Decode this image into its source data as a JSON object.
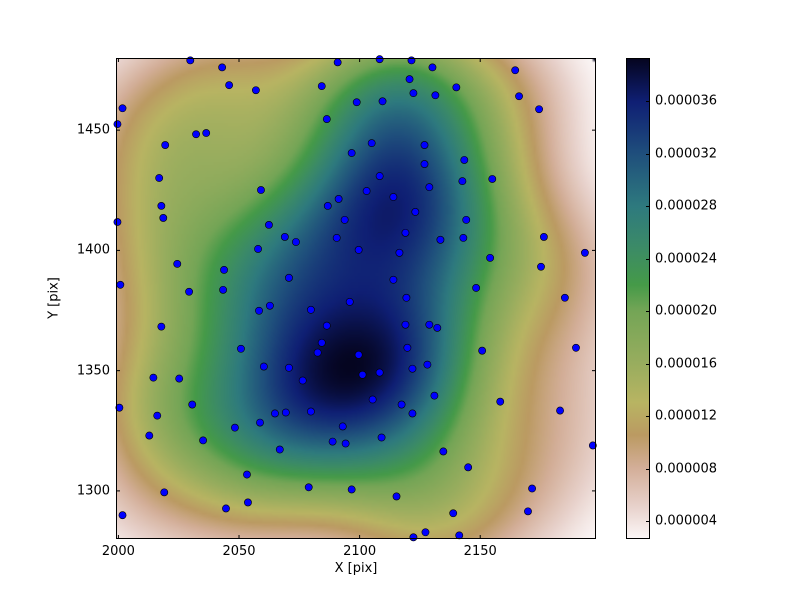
{
  "chart_data": {
    "type": "scatter",
    "background": "kde-heatmap",
    "xlabel": "X [pix]",
    "ylabel": "Y [pix]",
    "xlim": [
      1999,
      2198
    ],
    "ylim": [
      1280,
      1480
    ],
    "xticks": [
      2000,
      2050,
      2100,
      2150
    ],
    "yticks": [
      1300,
      1350,
      1400,
      1450
    ],
    "grid": false,
    "marker_color": "#0000ff",
    "marker_edge": "#000000",
    "points": [
      [
        2029.8,
        1479.0
      ],
      [
        2043.0,
        1476.1
      ],
      [
        2045.9,
        1468.7
      ],
      [
        2057.0,
        1466.6
      ],
      [
        2084.3,
        1468.3
      ],
      [
        2090.9,
        1478.2
      ],
      [
        2098.8,
        1461.6
      ],
      [
        2001.7,
        1459.1
      ],
      [
        1999.6,
        1452.5
      ],
      [
        2032.2,
        1448.3
      ],
      [
        2036.4,
        1448.8
      ],
      [
        2019.4,
        1443.8
      ],
      [
        2086.4,
        1454.6
      ],
      [
        2096.7,
        1440.5
      ],
      [
        2016.9,
        1430.1
      ],
      [
        2059.1,
        1425.1
      ],
      [
        2017.8,
        1418.5
      ],
      [
        2018.6,
        1413.5
      ],
      [
        2091.3,
        1421.4
      ],
      [
        2086.8,
        1418.5
      ],
      [
        1999.6,
        1411.8
      ],
      [
        2062.4,
        1410.6
      ],
      [
        2093.8,
        1412.7
      ],
      [
        2069.0,
        1405.6
      ],
      [
        2073.6,
        1403.5
      ],
      [
        2090.5,
        1405.2
      ],
      [
        2057.9,
        1400.6
      ],
      [
        2099.6,
        1400.2
      ],
      [
        2024.4,
        1394.4
      ],
      [
        2043.8,
        1391.9
      ],
      [
        2070.7,
        1388.6
      ],
      [
        2000.8,
        1385.7
      ],
      [
        2029.3,
        1382.8
      ],
      [
        2043.4,
        1383.6
      ],
      [
        2108.3,
        1479.5
      ],
      [
        2121.5,
        1479.0
      ],
      [
        2130.2,
        1476.1
      ],
      [
        2120.7,
        1471.2
      ],
      [
        2140.1,
        1467.8
      ],
      [
        2164.5,
        1474.9
      ],
      [
        2122.3,
        1465.4
      ],
      [
        2131.4,
        1464.5
      ],
      [
        2166.1,
        1464.1
      ],
      [
        2109.5,
        1462.0
      ],
      [
        2174.4,
        1458.7
      ],
      [
        2105.0,
        1444.6
      ],
      [
        2126.9,
        1443.8
      ],
      [
        2126.9,
        1435.9
      ],
      [
        2143.4,
        1437.6
      ],
      [
        2108.3,
        1430.9
      ],
      [
        2142.6,
        1428.8
      ],
      [
        2155.0,
        1429.7
      ],
      [
        2102.9,
        1424.7
      ],
      [
        2114.0,
        1422.2
      ],
      [
        2128.9,
        1426.3
      ],
      [
        2123.1,
        1416.0
      ],
      [
        2144.2,
        1412.7
      ],
      [
        2119.0,
        1407.3
      ],
      [
        2133.5,
        1404.4
      ],
      [
        2143.0,
        1405.2
      ],
      [
        2176.4,
        1405.6
      ],
      [
        2116.5,
        1399.0
      ],
      [
        2193.4,
        1399.0
      ],
      [
        2154.1,
        1396.9
      ],
      [
        2175.2,
        1393.2
      ],
      [
        2114.0,
        1387.8
      ],
      [
        2148.3,
        1384.4
      ],
      [
        2119.4,
        1380.3
      ],
      [
        2185.1,
        1380.3
      ],
      [
        2058.3,
        1374.9
      ],
      [
        2062.8,
        1377.0
      ],
      [
        2079.8,
        1375.3
      ],
      [
        2095.9,
        1378.6
      ],
      [
        2017.8,
        1368.3
      ],
      [
        2086.4,
        1368.7
      ],
      [
        2084.3,
        1361.6
      ],
      [
        2082.6,
        1357.5
      ],
      [
        2099.6,
        1356.6
      ],
      [
        2050.8,
        1359.1
      ],
      [
        2060.3,
        1351.7
      ],
      [
        2070.7,
        1351.2
      ],
      [
        2014.5,
        1347.1
      ],
      [
        2025.2,
        1346.7
      ],
      [
        2076.4,
        1345.9
      ],
      [
        2000.4,
        1334.6
      ],
      [
        2030.6,
        1335.9
      ],
      [
        2016.1,
        1331.3
      ],
      [
        2064.9,
        1332.2
      ],
      [
        2069.4,
        1332.6
      ],
      [
        2079.8,
        1333.0
      ],
      [
        2058.7,
        1328.4
      ],
      [
        2048.3,
        1326.3
      ],
      [
        2093.0,
        1326.8
      ],
      [
        2012.8,
        1323.0
      ],
      [
        2035.1,
        1321.0
      ],
      [
        2088.8,
        1320.5
      ],
      [
        2094.2,
        1319.7
      ],
      [
        2066.9,
        1317.2
      ],
      [
        2053.3,
        1306.8
      ],
      [
        2078.9,
        1301.5
      ],
      [
        2096.7,
        1300.6
      ],
      [
        2019.0,
        1299.4
      ],
      [
        2053.7,
        1295.2
      ],
      [
        2044.6,
        1292.7
      ],
      [
        2001.7,
        1289.9
      ],
      [
        2119.0,
        1369.1
      ],
      [
        2128.9,
        1369.1
      ],
      [
        2132.2,
        1367.8
      ],
      [
        2119.8,
        1359.5
      ],
      [
        2150.8,
        1358.3
      ],
      [
        2189.7,
        1359.5
      ],
      [
        2101.2,
        1348.3
      ],
      [
        2108.3,
        1349.2
      ],
      [
        2121.9,
        1350.8
      ],
      [
        2128.1,
        1352.5
      ],
      [
        2105.4,
        1338.0
      ],
      [
        2117.4,
        1335.9
      ],
      [
        2121.9,
        1332.2
      ],
      [
        2131.0,
        1339.6
      ],
      [
        2158.3,
        1337.1
      ],
      [
        2183.1,
        1333.4
      ],
      [
        2109.1,
        1322.2
      ],
      [
        2134.7,
        1316.4
      ],
      [
        2196.7,
        1318.9
      ],
      [
        2145.0,
        1309.8
      ],
      [
        2115.3,
        1297.7
      ],
      [
        2171.5,
        1301.0
      ],
      [
        2138.8,
        1290.7
      ],
      [
        2169.8,
        1291.5
      ],
      [
        2122.3,
        1280.7
      ],
      [
        2127.3,
        1282.8
      ],
      [
        2141.3,
        1281.5
      ]
    ],
    "colorbar": {
      "range": [
        2.63e-06,
        3.93e-05
      ],
      "ticks": [
        "0.000004",
        "0.000008",
        "0.000012",
        "0.000016",
        "0.000020",
        "0.000024",
        "0.000028",
        "0.000032",
        "0.000036"
      ],
      "colormap": [
        [
          2.63e-06,
          "#fbf6f6"
        ],
        [
          5e-06,
          "#e8d2cc"
        ],
        [
          8e-06,
          "#d3ae98"
        ],
        [
          1.05e-05,
          "#bb9a62"
        ],
        [
          1.3e-05,
          "#b8b462"
        ],
        [
          1.6e-05,
          "#98ad5e"
        ],
        [
          2e-05,
          "#74a556"
        ],
        [
          2.2e-05,
          "#459a48"
        ],
        [
          2.5e-05,
          "#3b8a68"
        ],
        [
          2.8e-05,
          "#2e7a7e"
        ],
        [
          3.2e-05,
          "#1f4f7c"
        ],
        [
          3.6e-05,
          "#0f1f74"
        ],
        [
          3.93e-05,
          "#050520"
        ]
      ]
    }
  }
}
